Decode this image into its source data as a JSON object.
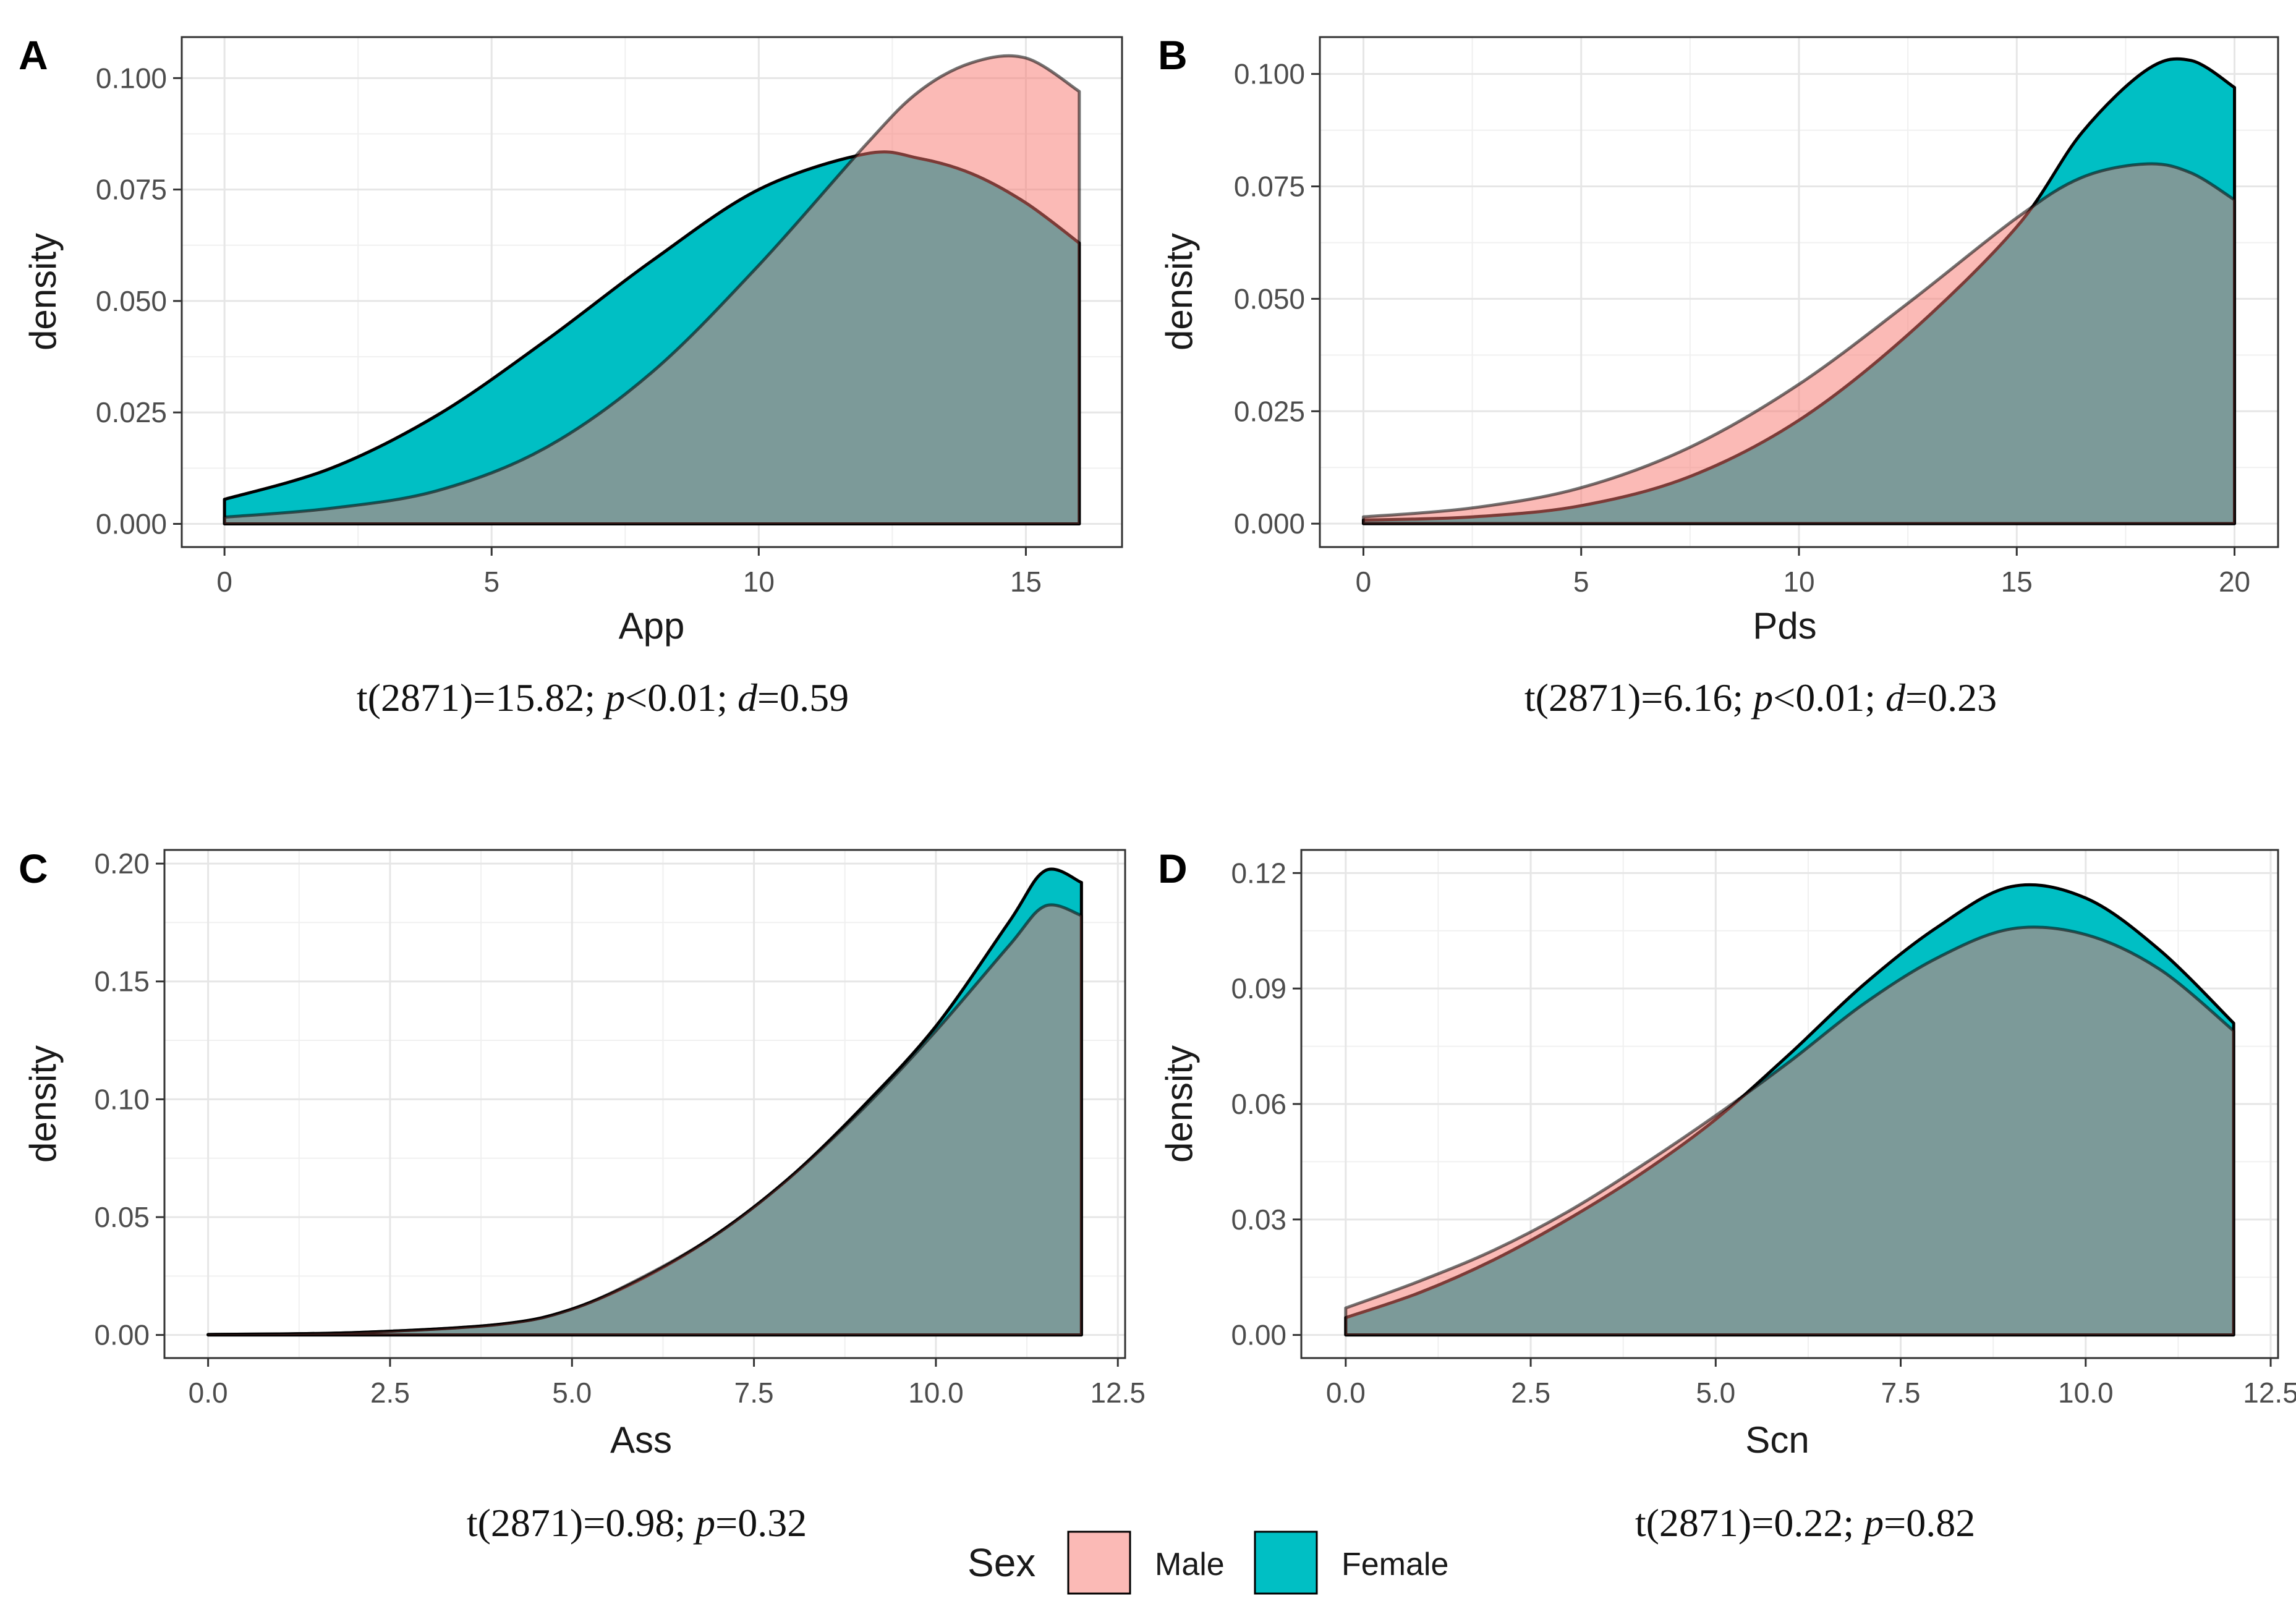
{
  "legend": {
    "title": "Sex",
    "items": [
      {
        "label": "Male",
        "color": "#F8766D"
      },
      {
        "label": "Female",
        "color": "#00BFC4"
      }
    ]
  },
  "chart_data": [
    {
      "type": "area",
      "panel_label": "A",
      "xlabel": "App",
      "ylabel": "density",
      "xlim": [
        -0.8,
        16.8
      ],
      "ylim": [
        -0.0052,
        0.1092
      ],
      "xticks": [
        0,
        5,
        10,
        15
      ],
      "xtick_labels": [
        "0",
        "5",
        "10",
        "15"
      ],
      "yticks": [
        0,
        0.025,
        0.05,
        0.075,
        0.1
      ],
      "ytick_labels": [
        "0.000",
        "0.025",
        "0.050",
        "0.075",
        "0.100"
      ],
      "series": [
        {
          "name": "Male",
          "x": [
            0,
            2,
            4,
            6,
            8,
            10,
            12,
            13,
            14,
            15,
            16
          ],
          "values": [
            0.0015,
            0.0035,
            0.0075,
            0.017,
            0.034,
            0.058,
            0.085,
            0.097,
            0.1035,
            0.1045,
            0.097
          ]
        },
        {
          "name": "Female",
          "x": [
            0,
            2,
            4,
            6,
            8,
            10,
            12,
            13,
            14,
            15,
            16
          ],
          "values": [
            0.0055,
            0.0125,
            0.0245,
            0.041,
            0.059,
            0.075,
            0.083,
            0.082,
            0.0785,
            0.072,
            0.063
          ]
        }
      ],
      "annotation": {
        "prefix": "t(2871)=15.82; ",
        "p_symbol": "p",
        "p_text": "<0.01; ",
        "d_symbol": "d",
        "d_text": "=0.59"
      }
    },
    {
      "type": "area",
      "panel_label": "B",
      "xlabel": "Pds",
      "ylabel": "density",
      "xlim": [
        -1,
        21
      ],
      "ylim": [
        -0.0052,
        0.1082
      ],
      "xticks": [
        0,
        5,
        10,
        15,
        20
      ],
      "xtick_labels": [
        "0",
        "5",
        "10",
        "15",
        "20"
      ],
      "yticks": [
        0,
        0.025,
        0.05,
        0.075,
        0.1
      ],
      "ytick_labels": [
        "0.000",
        "0.025",
        "0.050",
        "0.075",
        "0.100"
      ],
      "series": [
        {
          "name": "Male",
          "x": [
            0,
            2.5,
            5,
            7.5,
            10,
            12.5,
            15,
            16.5,
            18,
            19,
            20
          ],
          "values": [
            0.0015,
            0.0035,
            0.008,
            0.017,
            0.031,
            0.049,
            0.068,
            0.077,
            0.08,
            0.078,
            0.072
          ]
        },
        {
          "name": "Female",
          "x": [
            0,
            2.5,
            5,
            7.5,
            10,
            12.5,
            15,
            16.5,
            18,
            19,
            20
          ],
          "values": [
            0.0008,
            0.0015,
            0.004,
            0.0105,
            0.023,
            0.042,
            0.066,
            0.087,
            0.101,
            0.103,
            0.097
          ]
        }
      ],
      "annotation": {
        "prefix": "t(2871)=6.16; ",
        "p_symbol": "p",
        "p_text": "<0.01; ",
        "d_symbol": "d",
        "d_text": "=0.23"
      }
    },
    {
      "type": "area",
      "panel_label": "C",
      "xlabel": "Ass",
      "ylabel": "density",
      "xlim": [
        -0.6,
        12.6
      ],
      "ylim": [
        -0.0098,
        0.2058
      ],
      "xticks": [
        0,
        2.5,
        5,
        7.5,
        10,
        12.5
      ],
      "xtick_labels": [
        "0.0",
        "2.5",
        "5.0",
        "7.5",
        "10.0",
        "12.5"
      ],
      "yticks": [
        0,
        0.05,
        0.1,
        0.15,
        0.2
      ],
      "ytick_labels": [
        "0.00",
        "0.05",
        "0.10",
        "0.15",
        "0.20"
      ],
      "series": [
        {
          "name": "Male",
          "x": [
            0,
            2,
            4,
            5,
            6,
            7,
            8,
            9,
            10,
            11,
            11.5,
            12
          ],
          "values": [
            0.0002,
            0.001,
            0.0045,
            0.011,
            0.025,
            0.043,
            0.067,
            0.096,
            0.129,
            0.165,
            0.182,
            0.178
          ]
        },
        {
          "name": "Female",
          "x": [
            0,
            2,
            4,
            5,
            6,
            7,
            8,
            9,
            10,
            11,
            11.5,
            12
          ],
          "values": [
            0.0002,
            0.001,
            0.0045,
            0.011,
            0.0245,
            0.043,
            0.067,
            0.097,
            0.131,
            0.175,
            0.197,
            0.192
          ]
        }
      ],
      "annotation": {
        "prefix": "t(2871)=0.98; ",
        "p_symbol": "p",
        "p_text": "=0.32",
        "d_symbol": "",
        "d_text": ""
      }
    },
    {
      "type": "area",
      "panel_label": "D",
      "xlabel": "Scn",
      "ylabel": "density",
      "xlim": [
        -0.6,
        12.6
      ],
      "ylim": [
        -0.006,
        0.126
      ],
      "xticks": [
        0,
        2.5,
        5,
        7.5,
        10,
        12.5
      ],
      "xtick_labels": [
        "0.0",
        "2.5",
        "5.0",
        "7.5",
        "10.0",
        "12.5"
      ],
      "yticks": [
        0,
        0.03,
        0.06,
        0.09,
        0.12
      ],
      "ytick_labels": [
        "0.00",
        "0.03",
        "0.06",
        "0.09",
        "0.12"
      ],
      "series": [
        {
          "name": "Male",
          "x": [
            0,
            1,
            2,
            3,
            4,
            5,
            6,
            7,
            8,
            9,
            10,
            11,
            12
          ],
          "values": [
            0.007,
            0.014,
            0.022,
            0.032,
            0.044,
            0.057,
            0.071,
            0.086,
            0.098,
            0.1055,
            0.104,
            0.095,
            0.079
          ]
        },
        {
          "name": "Female",
          "x": [
            0,
            1,
            2,
            3,
            4,
            5,
            6,
            7,
            8,
            9,
            10,
            11,
            12
          ],
          "values": [
            0.0045,
            0.011,
            0.0195,
            0.03,
            0.042,
            0.056,
            0.073,
            0.091,
            0.106,
            0.1165,
            0.1135,
            0.1,
            0.081
          ]
        }
      ],
      "annotation": {
        "prefix": "t(2871)=0.22; ",
        "p_symbol": "p",
        "p_text": "=0.82",
        "d_symbol": "",
        "d_text": ""
      }
    }
  ]
}
